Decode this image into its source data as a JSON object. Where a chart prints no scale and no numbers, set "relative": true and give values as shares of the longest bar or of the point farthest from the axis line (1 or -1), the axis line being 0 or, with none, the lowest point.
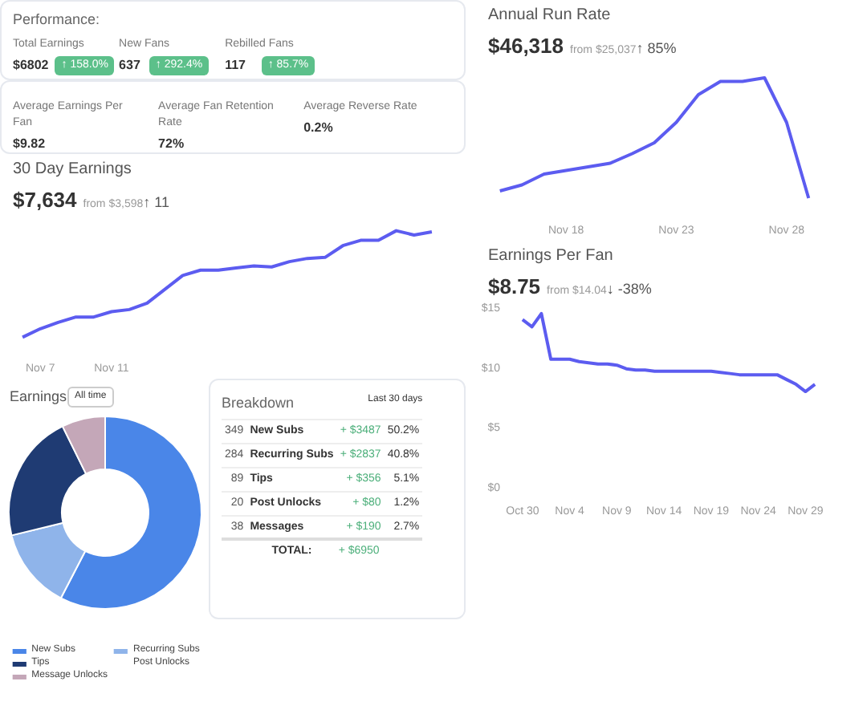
{
  "chart_data": [
    {
      "type": "other",
      "title": "Performance:",
      "categories": [
        "Total Earnings",
        "New Fans",
        "Rebilled Fans"
      ],
      "series": [
        {
          "values": [
            6802,
            637,
            117
          ],
          "value_labels": [
            "$6802",
            "637",
            "117"
          ]
        },
        {
          "color": "#5cc08a",
          "values": [
            158.0,
            292.4,
            85.7
          ],
          "value_labels": [
            "↑ 158.0%",
            "↑ 292.4%",
            "↑ 85.7%"
          ]
        }
      ]
    },
    {
      "type": "other",
      "categories": [
        "Average Earnings Per Fan",
        "Average Fan Retention Rate",
        "Average Reverse Rate"
      ],
      "values": [
        9.82,
        72,
        0.2
      ],
      "value_labels": [
        "$9.82",
        "72%",
        "0.2%"
      ]
    },
    {
      "type": "line",
      "title": "30 Day Earnings",
      "annotations": [
        "$7,634",
        "from $3,598",
        "↑ 11"
      ],
      "relative": true,
      "categories": [
        null,
        "Nov 7",
        null,
        null,
        null,
        "Nov 11",
        null,
        null,
        null,
        null,
        null,
        null,
        null,
        null,
        null,
        null,
        null,
        null,
        null,
        null,
        null,
        null,
        null,
        null
      ],
      "series": [
        {
          "color": "#5c5cf0",
          "values": [
            0,
            0.08,
            0.14,
            0.19,
            0.19,
            0.24,
            0.26,
            0.32,
            0.45,
            0.58,
            0.63,
            0.63,
            0.65,
            0.67,
            0.66,
            0.71,
            0.74,
            0.75,
            0.86,
            0.91,
            0.91,
            1.0,
            0.96,
            0.99
          ]
        }
      ]
    },
    {
      "type": "donut",
      "title": "Earnings",
      "annotations": [
        "All time"
      ],
      "legend": "bottom",
      "categories": [
        "New Subs",
        "Recurring Subs",
        "Tips",
        "Post Unlocks",
        "Message Unlocks"
      ],
      "values": [
        57.6,
        13.6,
        21.5,
        0,
        7.3
      ],
      "colors": [
        "#4a86e8",
        "#8fb4ea",
        "#1f3b73",
        "#6b5b95",
        "#c4a7b8"
      ]
    },
    {
      "type": "other",
      "title": "Breakdown",
      "annotations": [
        "Last 30 days",
        "TOTAL:"
      ],
      "categories": [
        "New Subs",
        "Recurring Subs",
        "Tips",
        "Post Unlocks",
        "Messages"
      ],
      "series": [
        {
          "values": [
            349,
            284,
            89,
            20,
            38
          ],
          "value_labels": [
            "349",
            "284",
            "89",
            "20",
            "38"
          ]
        },
        {
          "values": [
            3487,
            2837,
            356,
            80,
            190
          ],
          "value_labels": [
            "+ $3487",
            "+ $2837",
            "+ $356",
            "+ $80",
            "+ $190"
          ]
        },
        {
          "values": [
            50.2,
            40.8,
            5.1,
            1.2,
            2.7
          ],
          "value_labels": [
            "50.2%",
            "40.8%",
            "5.1%",
            "1.2%",
            "2.7%"
          ]
        }
      ],
      "totals": [
        "+ $6950"
      ]
    },
    {
      "type": "line",
      "title": "Annual Run Rate",
      "annotations": [
        "$46,318",
        "from $25,037",
        "↑ 85%"
      ],
      "relative": true,
      "categories": [
        null,
        null,
        null,
        "Nov 18",
        null,
        null,
        null,
        null,
        "Nov 23",
        null,
        null,
        null,
        null,
        "Nov 28",
        null
      ],
      "series": [
        {
          "color": "#5c5cf0",
          "values": [
            0.06,
            0.11,
            0.2,
            0.23,
            0.26,
            0.29,
            0.37,
            0.46,
            0.63,
            0.86,
            0.97,
            0.97,
            1.0,
            0.63,
            0
          ]
        }
      ]
    },
    {
      "type": "line",
      "title": "Earnings Per Fan",
      "annotations": [
        "$8.75",
        "from $14.04",
        "↓ -38%"
      ],
      "categories": [
        "Oct 30",
        null,
        null,
        null,
        null,
        "Nov 4",
        null,
        null,
        null,
        null,
        "Nov 9",
        null,
        null,
        null,
        null,
        "Nov 14",
        null,
        null,
        null,
        null,
        "Nov 19",
        null,
        null,
        null,
        null,
        "Nov 24",
        null,
        null,
        null,
        null,
        "Nov 29",
        null
      ],
      "ylim": [
        0,
        15
      ],
      "yticks": [
        {
          "value": 0,
          "label": "$0"
        },
        {
          "value": 5,
          "label": "$5"
        },
        {
          "value": 10,
          "label": "$10"
        },
        {
          "value": 15,
          "label": "$15"
        }
      ],
      "series": [
        {
          "color": "#5c5cf0",
          "values": [
            14.1,
            13.5,
            14.6,
            10.8,
            10.8,
            10.8,
            10.6,
            10.5,
            10.4,
            10.4,
            10.3,
            10.0,
            9.9,
            9.9,
            9.8,
            9.8,
            9.8,
            9.8,
            9.8,
            9.8,
            9.8,
            9.7,
            9.6,
            9.5,
            9.5,
            9.5,
            9.5,
            9.5,
            9.1,
            8.7,
            8.1,
            8.7
          ]
        }
      ]
    }
  ]
}
